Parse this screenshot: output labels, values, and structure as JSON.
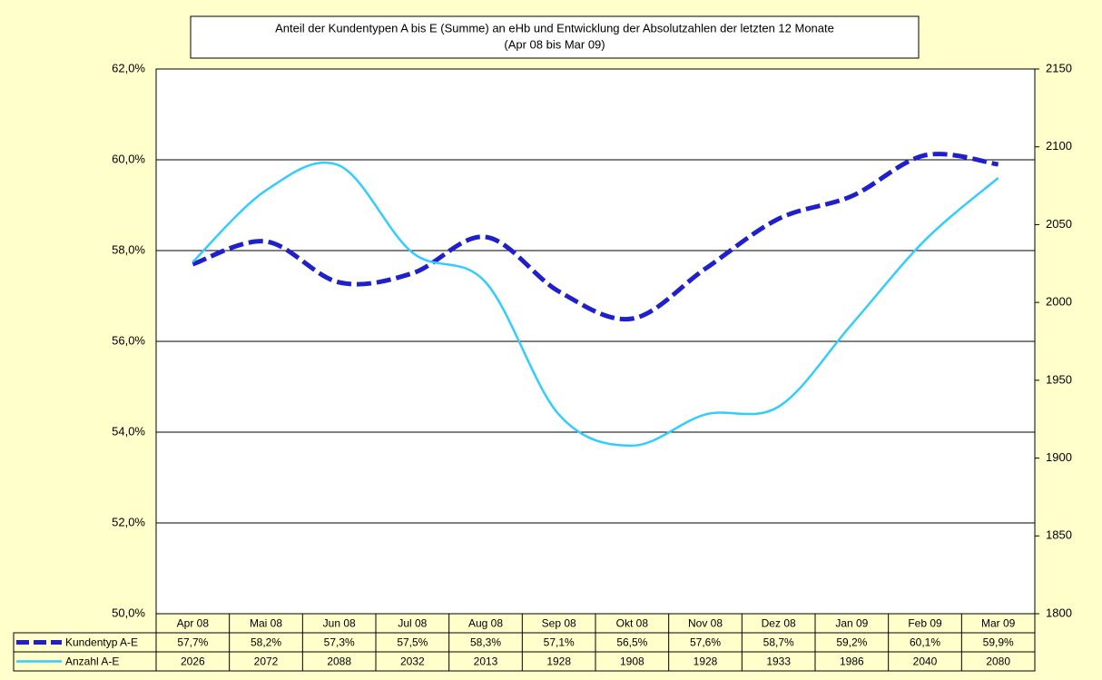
{
  "chart_data": {
    "type": "line",
    "title": "Anteil der Kundentypen A bis E (Summe) an eHb und Entwicklung der Absolutzahlen der letzten 12 Monate",
    "subtitle": "(Apr 08 bis Mar 09)",
    "categories": [
      "Apr 08",
      "Mai 08",
      "Jun 08",
      "Jul 08",
      "Aug 08",
      "Sep 08",
      "Okt 08",
      "Nov 08",
      "Dez 08",
      "Jan 09",
      "Feb 09",
      "Mar 09"
    ],
    "series": [
      {
        "name": "Kundentyp A-E",
        "color": "#1f1fcc",
        "dashed": true,
        "values": [
          57.7,
          58.2,
          57.3,
          57.5,
          58.3,
          57.1,
          56.5,
          57.6,
          58.7,
          59.2,
          60.1,
          59.9
        ],
        "value_labels": [
          "57,7%",
          "58,2%",
          "57,3%",
          "57,5%",
          "58,3%",
          "57,1%",
          "56,5%",
          "57,6%",
          "58,7%",
          "59,2%",
          "60,1%",
          "59,9%"
        ]
      },
      {
        "name": "Anzahl A-E",
        "color": "#33ccff",
        "axis": "y2",
        "values": [
          2026,
          2072,
          2088,
          2032,
          2013,
          1928,
          1908,
          1928,
          1933,
          1986,
          2040,
          2080
        ]
      }
    ],
    "ylim": [
      50,
      62
    ],
    "yticks": [
      {
        "value": 50,
        "label": "50,0%"
      },
      {
        "value": 52,
        "label": "52,0%"
      },
      {
        "value": 54,
        "label": "54,0%"
      },
      {
        "value": 56,
        "label": "56,0%"
      },
      {
        "value": 58,
        "label": "58,0%"
      },
      {
        "value": 60,
        "label": "60,0%"
      },
      {
        "value": 62,
        "label": "62,0%"
      }
    ],
    "y2lim": [
      1800,
      2150
    ],
    "y2ticks": [
      1800,
      1850,
      1900,
      1950,
      2000,
      2050,
      2100,
      2150
    ],
    "grid": true
  }
}
